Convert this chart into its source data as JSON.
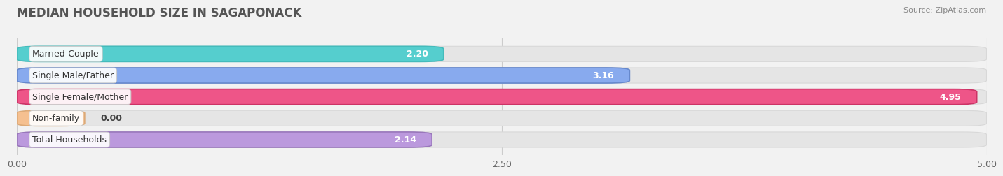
{
  "title": "MEDIAN HOUSEHOLD SIZE IN SAGAPONACK",
  "source": "Source: ZipAtlas.com",
  "categories": [
    "Married-Couple",
    "Single Male/Father",
    "Single Female/Mother",
    "Non-family",
    "Total Households"
  ],
  "values": [
    2.2,
    3.16,
    4.95,
    0.0,
    2.14
  ],
  "value_labels": [
    "2.20",
    "3.16",
    "4.95",
    "0.00",
    "2.14"
  ],
  "bar_colors": [
    "#55cece",
    "#88aaee",
    "#ee5588",
    "#f5c090",
    "#bb99dd"
  ],
  "bar_edge_colors": [
    "#44bbbb",
    "#6688cc",
    "#cc3366",
    "#ddaa77",
    "#9977bb"
  ],
  "background_color": "#f2f2f2",
  "bar_bg_color": "#e5e5e5",
  "bar_bg_edge_color": "#d8d8d8",
  "xlim": [
    0,
    5.0
  ],
  "xticks": [
    0.0,
    2.5,
    5.0
  ],
  "xtick_labels": [
    "0.00",
    "2.50",
    "5.00"
  ],
  "title_fontsize": 12,
  "source_fontsize": 8,
  "label_fontsize": 9,
  "value_fontsize": 9,
  "bar_height": 0.72,
  "nonfamily_bar_width": 0.35,
  "label_inside_threshold": 1.5,
  "rounding_size": 0.12
}
